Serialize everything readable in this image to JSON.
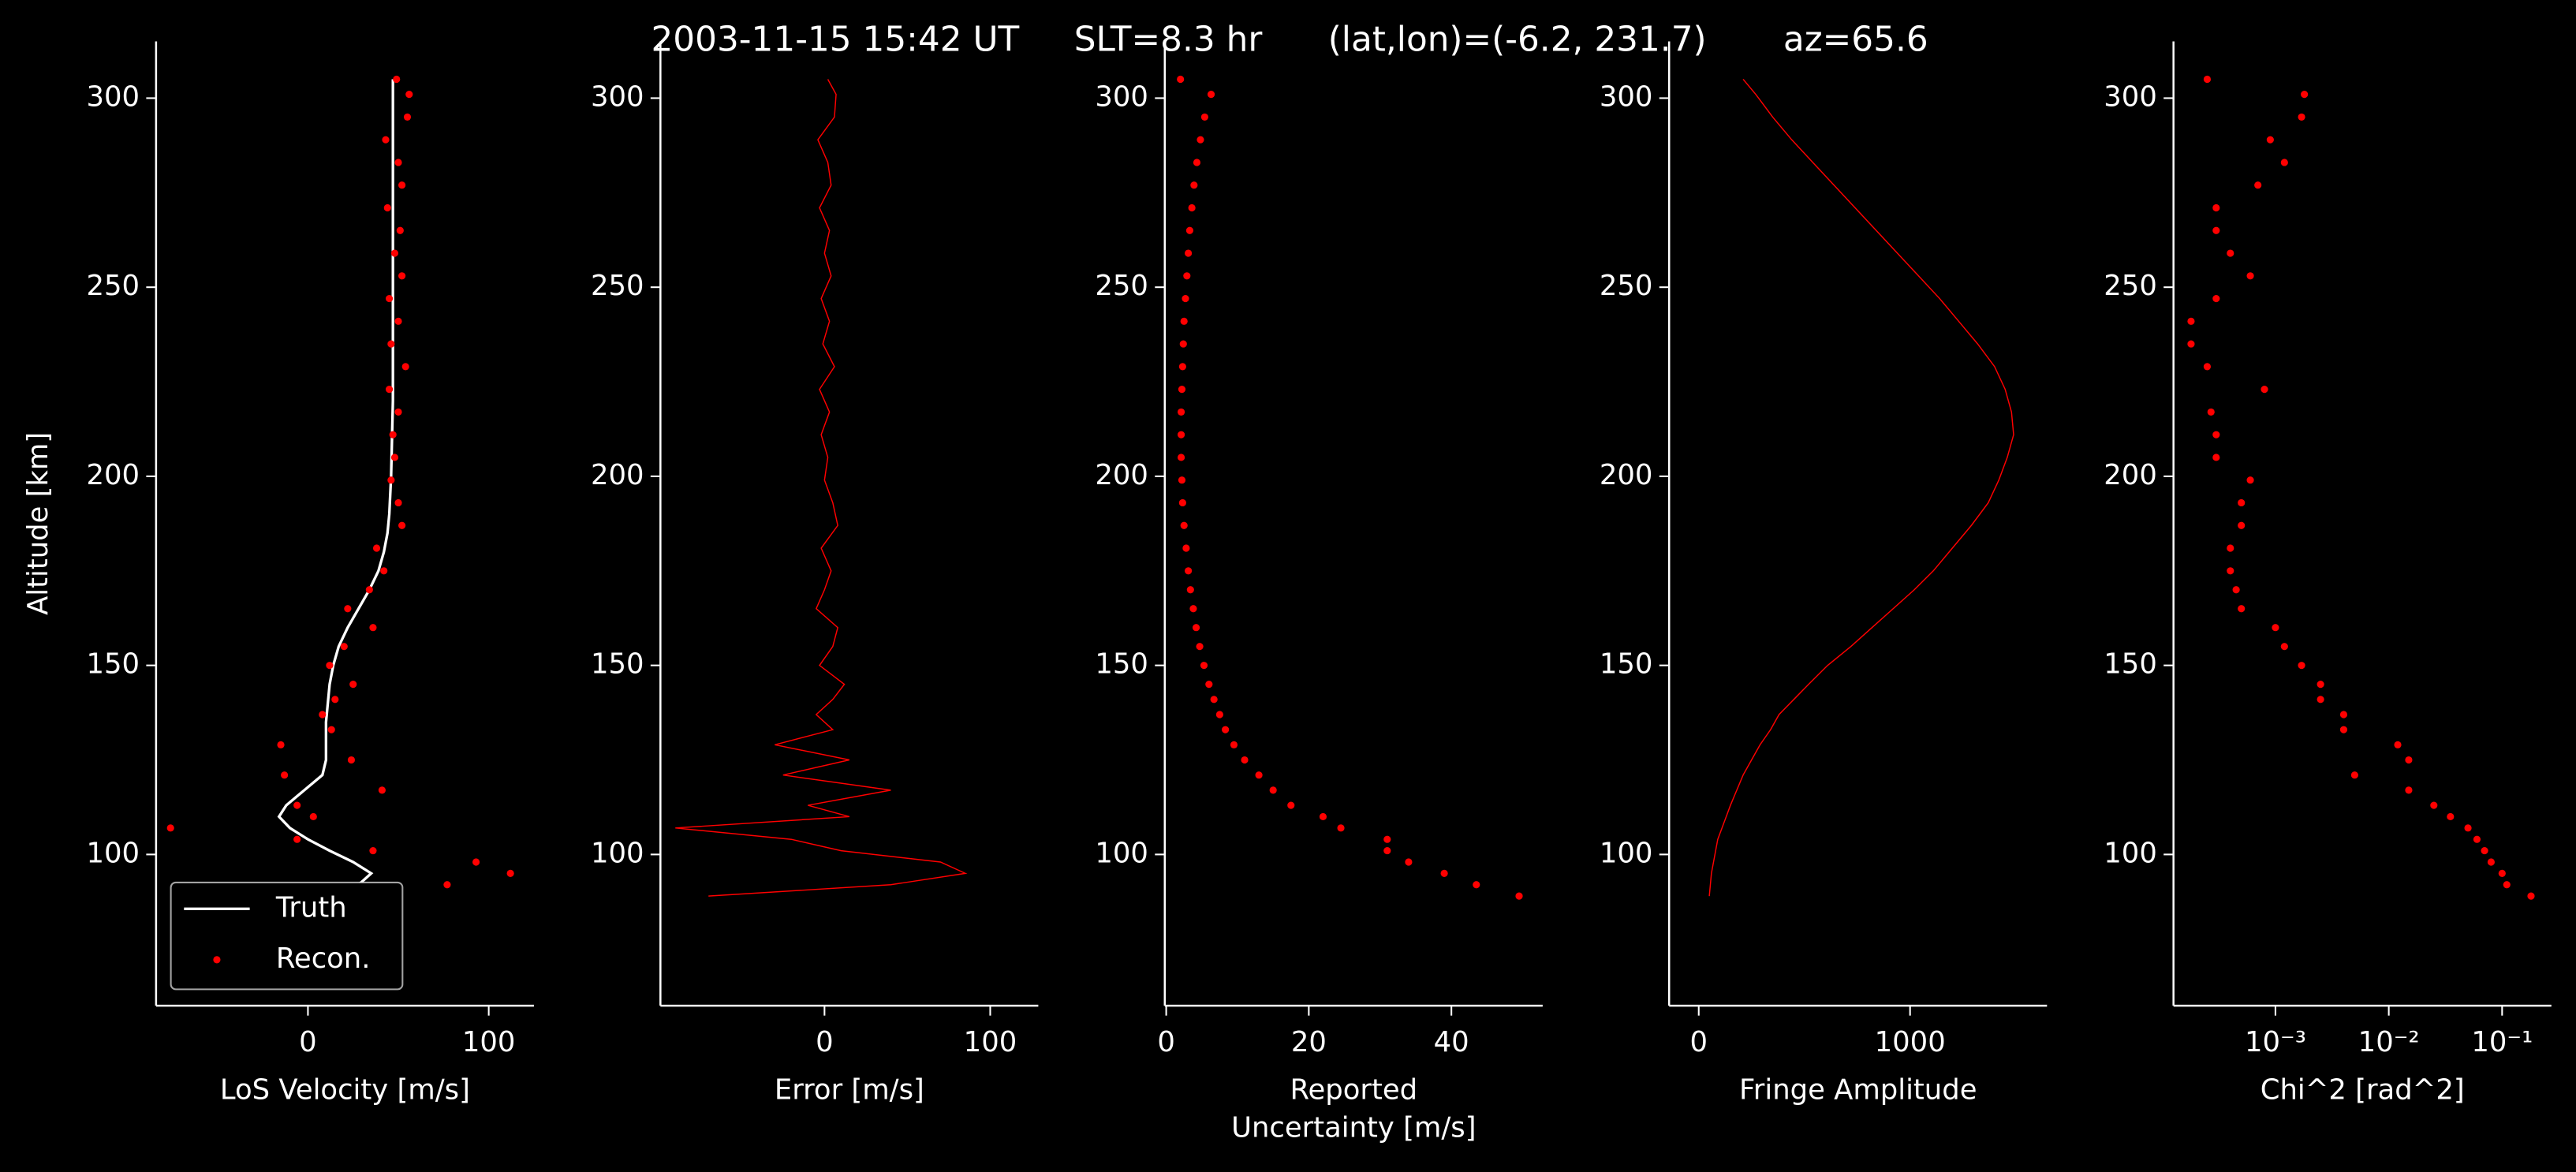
{
  "suptitle": "2003-11-15 15:42 UT     SLT=8.3 hr      (lat,lon)=(-6.2, 231.7)       az=65.6",
  "chart_data": [
    {
      "type": "line",
      "ylabel": "Altitude [km]",
      "xlabel": [
        "LoS Velocity [m/s]"
      ],
      "xlim": [
        -84,
        125
      ],
      "xticks": [
        0,
        100
      ],
      "ylim": [
        60,
        315
      ],
      "yticks": [
        100,
        150,
        200,
        250,
        300
      ],
      "legend": "lower left",
      "series": [
        {
          "name": "Truth",
          "color": "#ffffff",
          "style": "line",
          "x": [
            12,
            28,
            35,
            25,
            12,
            0,
            -10,
            -16,
            -12,
            -2,
            8,
            10,
            10,
            10,
            11,
            12,
            14,
            17,
            22,
            28,
            34,
            39,
            42,
            44,
            45,
            46,
            47,
            47,
            47,
            47
          ],
          "y": [
            89,
            92,
            95,
            98,
            101,
            104,
            107,
            110,
            113,
            117,
            121,
            125,
            130,
            135,
            140,
            145,
            150,
            155,
            160,
            165,
            170,
            175,
            180,
            185,
            190,
            200,
            220,
            250,
            280,
            305
          ]
        },
        {
          "name": "Recon.",
          "color": "#ff0000",
          "style": "points",
          "x": [
            77,
            112,
            93,
            36,
            -6,
            -76,
            3,
            -6,
            41,
            -13,
            24,
            -15,
            13,
            8,
            15,
            25,
            12,
            20,
            36,
            22,
            34,
            42,
            38,
            52,
            50,
            46,
            48,
            47,
            50,
            45,
            54,
            46,
            50,
            45,
            52,
            48,
            51,
            44,
            52,
            50,
            43,
            55,
            56,
            49
          ],
          "y": [
            92,
            95,
            98,
            101,
            104,
            107,
            110,
            113,
            117,
            121,
            125,
            129,
            133,
            137,
            141,
            145,
            150,
            155,
            160,
            165,
            170,
            175,
            181,
            187,
            193,
            199,
            205,
            211,
            217,
            223,
            229,
            235,
            241,
            247,
            253,
            259,
            265,
            271,
            277,
            283,
            289,
            295,
            301,
            305
          ]
        }
      ]
    },
    {
      "type": "line",
      "xlabel": [
        "Error [m/s]"
      ],
      "xlim": [
        -99,
        129
      ],
      "xticks": [
        0,
        100
      ],
      "ylim": [
        60,
        315
      ],
      "yticks": [
        100,
        150,
        200,
        250,
        300
      ],
      "series": [
        {
          "color": "#ff0000",
          "style": "line",
          "x": [
            -70,
            40,
            85,
            70,
            10,
            -20,
            -90,
            15,
            -10,
            40,
            -25,
            15,
            -30,
            5,
            -5,
            5,
            12,
            -3,
            5,
            8,
            -5,
            0,
            4,
            -2,
            8,
            5,
            0,
            2,
            -2,
            3,
            -3,
            6,
            -1,
            3,
            -2,
            4,
            0,
            3,
            -3,
            4,
            2,
            -4,
            6,
            7,
            2
          ],
          "y": [
            89,
            92,
            95,
            98,
            101,
            104,
            107,
            110,
            113,
            117,
            121,
            125,
            129,
            133,
            137,
            141,
            145,
            150,
            155,
            160,
            165,
            170,
            175,
            181,
            187,
            193,
            199,
            205,
            211,
            217,
            223,
            229,
            235,
            241,
            247,
            253,
            259,
            265,
            271,
            277,
            283,
            289,
            295,
            301,
            305
          ]
        }
      ]
    },
    {
      "type": "scatter",
      "xlabel": [
        "Reported",
        "Uncertainty [m/s]"
      ],
      "xlim": [
        -0.2,
        52.8
      ],
      "xticks": [
        0,
        20,
        40
      ],
      "ylim": [
        60,
        315
      ],
      "yticks": [
        100,
        150,
        200,
        250,
        300
      ],
      "series": [
        {
          "color": "#ff0000",
          "style": "points",
          "x": [
            49.5,
            43.5,
            39,
            34,
            31,
            31,
            24.5,
            22,
            17.5,
            15,
            13,
            11,
            9.5,
            8.3,
            7.5,
            6.7,
            6,
            5.3,
            4.7,
            4.2,
            3.8,
            3.4,
            3.1,
            2.8,
            2.5,
            2.3,
            2.2,
            2.1,
            2.1,
            2.1,
            2.2,
            2.3,
            2.4,
            2.5,
            2.7,
            2.9,
            3.1,
            3.3,
            3.6,
            3.9,
            4.3,
            4.8,
            5.4,
            6.3,
            2
          ],
          "y": [
            89,
            92,
            95,
            98,
            101,
            104,
            107,
            110,
            113,
            117,
            121,
            125,
            129,
            133,
            137,
            141,
            145,
            150,
            155,
            160,
            165,
            170,
            175,
            181,
            187,
            193,
            199,
            205,
            211,
            217,
            223,
            229,
            235,
            241,
            247,
            253,
            259,
            265,
            271,
            277,
            283,
            289,
            295,
            301,
            305
          ]
        }
      ]
    },
    {
      "type": "line",
      "xlabel": [
        "Fringe Amplitude"
      ],
      "xlim": [
        -140,
        1648
      ],
      "xticks": [
        0,
        1000
      ],
      "ylim": [
        60,
        315
      ],
      "yticks": [
        100,
        150,
        200,
        250,
        300
      ],
      "series": [
        {
          "color": "#ff0000",
          "style": "line",
          "x": [
            50,
            55,
            60,
            70,
            80,
            90,
            110,
            130,
            150,
            180,
            210,
            250,
            290,
            340,
            380,
            450,
            520,
            610,
            720,
            820,
            920,
            1020,
            1110,
            1200,
            1290,
            1370,
            1420,
            1460,
            1490,
            1480,
            1450,
            1400,
            1320,
            1230,
            1140,
            1040,
            940,
            840,
            740,
            640,
            540,
            440,
            350,
            270,
            210
          ],
          "y": [
            89,
            92,
            95,
            98,
            101,
            104,
            107,
            110,
            113,
            117,
            121,
            125,
            129,
            133,
            137,
            141,
            145,
            150,
            155,
            160,
            165,
            170,
            175,
            181,
            187,
            193,
            199,
            205,
            211,
            217,
            223,
            229,
            235,
            241,
            247,
            253,
            259,
            265,
            271,
            277,
            283,
            289,
            295,
            301,
            305
          ]
        }
      ]
    },
    {
      "type": "scatter",
      "xlabel": [
        "Chi^2 [rad^2]"
      ],
      "xscale": "log",
      "xlim": [
        0.000126,
        0.272
      ],
      "xticks": [
        {
          "value": 0.001,
          "label": "10⁻³"
        },
        {
          "value": 0.01,
          "label": "10⁻²"
        },
        {
          "value": 0.1,
          "label": "10⁻¹"
        }
      ],
      "ylim": [
        60,
        315
      ],
      "yticks": [
        100,
        150,
        200,
        250,
        300
      ],
      "series": [
        {
          "color": "#ff0000",
          "style": "points",
          "x": [
            0.18,
            0.11,
            0.1,
            0.08,
            0.07,
            0.06,
            0.05,
            0.035,
            0.025,
            0.015,
            0.005,
            0.015,
            0.012,
            0.004,
            0.004,
            0.0025,
            0.0025,
            0.0017,
            0.0012,
            0.001,
            0.0005,
            0.00045,
            0.0004,
            0.0004,
            0.0005,
            0.0005,
            0.0006,
            0.0003,
            0.0003,
            0.00027,
            0.0008,
            0.00025,
            0.00018,
            0.00018,
            0.0003,
            0.0006,
            0.0004,
            0.0003,
            0.0003,
            0.0007,
            0.0012,
            0.0009,
            0.0017,
            0.0018,
            0.00025
          ],
          "y": [
            89,
            92,
            95,
            98,
            101,
            104,
            107,
            110,
            113,
            117,
            121,
            125,
            129,
            133,
            137,
            141,
            145,
            150,
            155,
            160,
            165,
            170,
            175,
            181,
            187,
            193,
            199,
            205,
            211,
            217,
            223,
            229,
            235,
            241,
            247,
            253,
            259,
            265,
            271,
            277,
            283,
            289,
            295,
            301,
            305
          ]
        }
      ]
    }
  ]
}
